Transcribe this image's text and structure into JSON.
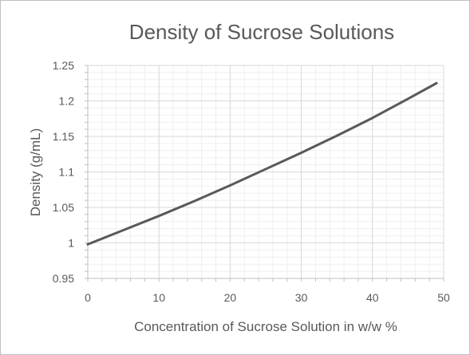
{
  "chart_data": {
    "type": "line",
    "title": "Density of Sucrose Solutions",
    "xlabel": "Concentration of Sucrose Solution in w/w %",
    "ylabel": "Density (g/mL)",
    "xlim": [
      0,
      50
    ],
    "ylim": [
      0.95,
      1.25
    ],
    "x_ticks": [
      "0",
      "10",
      "20",
      "30",
      "40",
      "50"
    ],
    "y_ticks": [
      "0.95",
      "1",
      "1.05",
      "1.1",
      "1.15",
      "1.2",
      "1.25"
    ],
    "grid": true,
    "legend": "none",
    "series": [
      {
        "color": "#595959",
        "x": [
          0,
          5,
          10,
          15,
          20,
          25,
          30,
          35,
          40,
          45,
          49
        ],
        "y": [
          0.998,
          1.018,
          1.038,
          1.059,
          1.081,
          1.104,
          1.127,
          1.151,
          1.176,
          1.203,
          1.225
        ]
      }
    ],
    "colors": {
      "grid": "#d9d9d9",
      "axis": "#bfbfbf",
      "text": "#595959"
    }
  }
}
